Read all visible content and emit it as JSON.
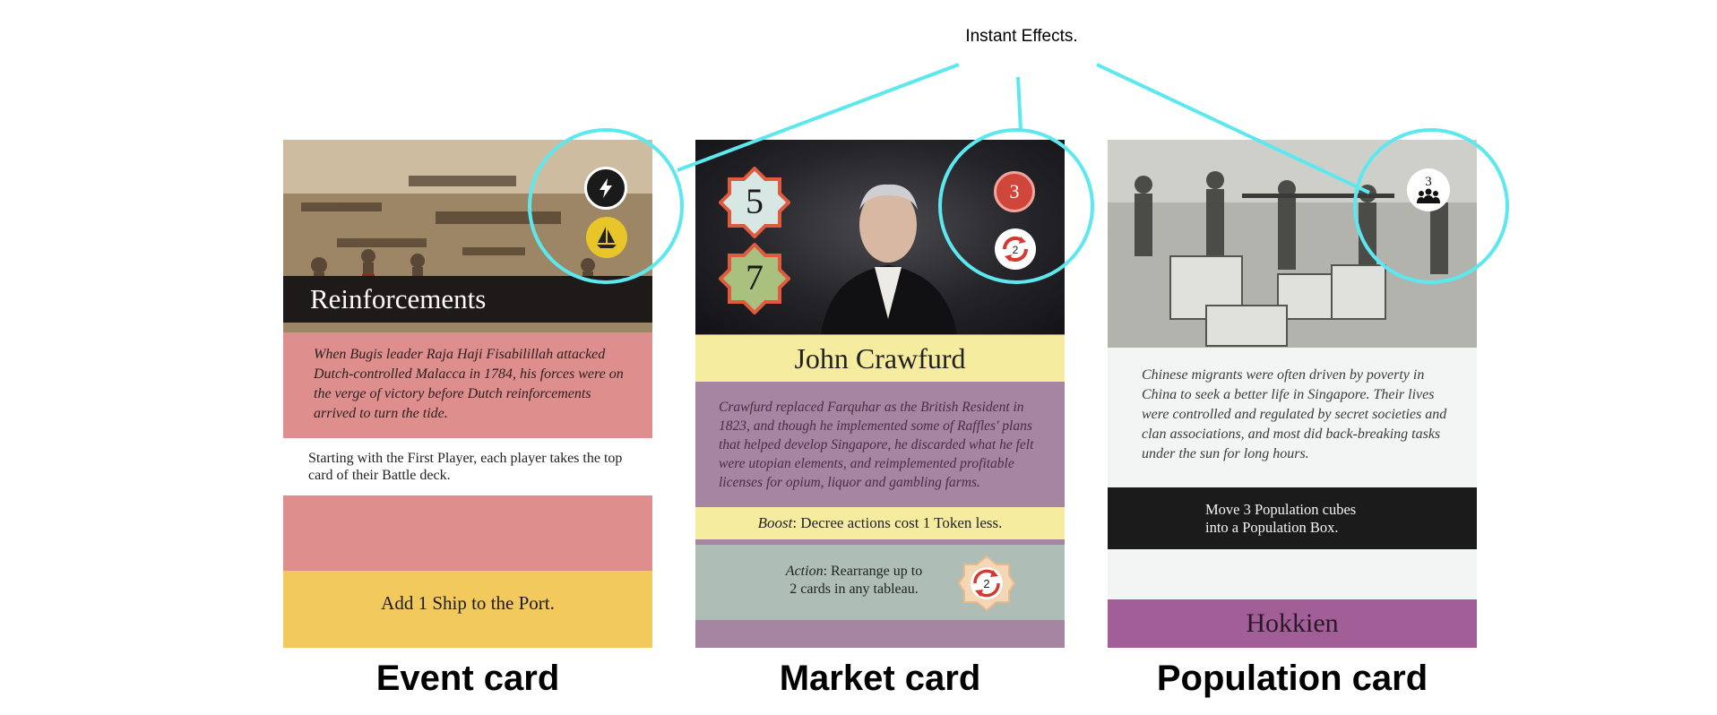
{
  "annotation": {
    "label": "Instant Effects.",
    "highlight_color": "#5de8ef"
  },
  "event_card": {
    "title": "Reinforcements",
    "flavor": "When Bugis leader Raja Haji Fisabilillah attacked Dutch-controlled Malacca in 1784, his forces were on the verge of victory before Dutch reinforcements arrived to turn the tide.",
    "rules": "Starting with the First Player, each player takes the top card of their Battle deck.",
    "effect": "Add 1 Ship to the Port.",
    "icons": [
      "lightning-icon",
      "ship-icon"
    ],
    "colors": {
      "band": "#de8e8c",
      "effect_band": "#f2c95c"
    },
    "caption": "Event card"
  },
  "market_card": {
    "title": "John Crawfurd",
    "costs": [
      "5",
      "7"
    ],
    "badge_value": "3",
    "rearrange_value": "2",
    "flavor": "Crawfurd replaced Farquhar as the British Resident in 1823, and though he implemented some of Raffles' plans that helped develop Singapore, he discarded what he felt were utopian elements, and reimplemented profitable licenses for opium, liquor and gambling farms.",
    "boost_label": "Boost",
    "boost_text": ": Decree actions cost 1 Token less.",
    "action_label": "Action",
    "action_text_1": ": Rearrange up to",
    "action_text_2": "2 cards in any tableau.",
    "action_value": "2",
    "icons": [
      "rearrange-icon",
      "portrait-image"
    ],
    "colors": {
      "title_band": "#f6ec9f",
      "flavor_band": "#a585a1",
      "action_band": "#aebdb5"
    },
    "caption": "Market card"
  },
  "population_card": {
    "title": "Hokkien",
    "population_value": "3",
    "flavor": "Chinese migrants were often driven by poverty in China to seek a better life in Singapore. Their lives were controlled and regulated by secret societies and clan associations, and most did back-breaking tasks under the sun for long hours.",
    "rules_line_1": "Move 3 Population cubes",
    "rules_line_2": "into a Population Box.",
    "icons": [
      "people-icon"
    ],
    "colors": {
      "rules_band": "#1b1b1b",
      "title_band": "#a25e96"
    },
    "caption": "Population card"
  }
}
